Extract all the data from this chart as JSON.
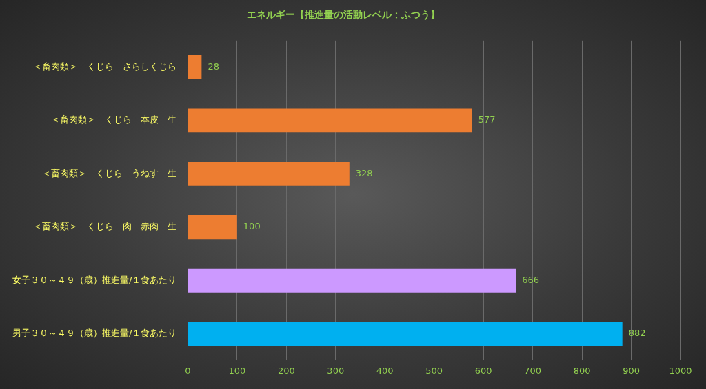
{
  "chart_data": {
    "type": "bar",
    "orientation": "horizontal",
    "title": "エネルギー【推進量の活動レベル：ふつう】",
    "categories": [
      "＜畜肉類＞　くじら　さらしくじら",
      "＜畜肉類＞　くじら　本皮　生",
      "＜畜肉類＞　くじら　うねす　生",
      "＜畜肉類＞　くじら　肉　赤肉　生",
      "女子３０～４９（歳）推進量/１食あたり",
      "男子３０～４９（歳）推進量/１食あたり"
    ],
    "values": [
      28,
      577,
      328,
      100,
      666,
      882
    ],
    "colors": [
      "#ed7d31",
      "#ed7d31",
      "#ed7d31",
      "#ed7d31",
      "#cc99ff",
      "#00b0f0"
    ],
    "xlim": [
      0,
      1000
    ],
    "xticks": [
      0,
      100,
      200,
      300,
      400,
      500,
      600,
      700,
      800,
      900,
      1000
    ],
    "grid": "x",
    "data_labels": true
  }
}
